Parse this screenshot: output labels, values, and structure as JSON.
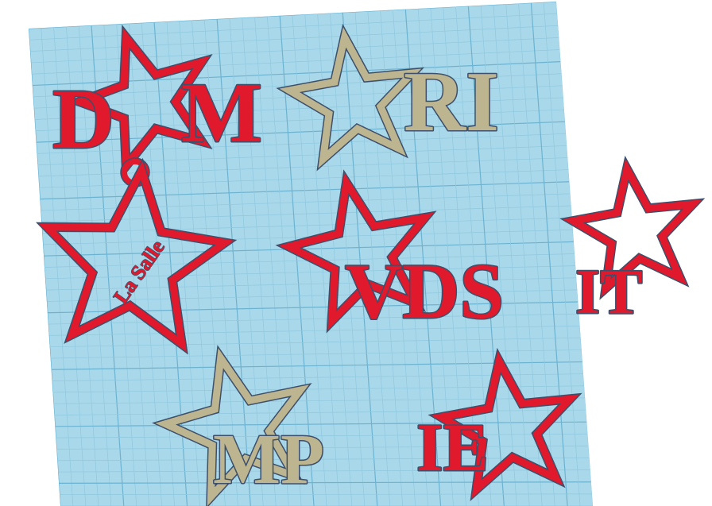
{
  "colors": {
    "background": "#ffffff",
    "workplane": "#a9d8ea",
    "grid_minor": "#8fc8df",
    "grid_major": "#6cb3d1",
    "red": "#e0192c",
    "tan": "#bdb58f",
    "outline": "#3d4f6a",
    "ring": "#e0192c"
  },
  "icons": {
    "keychain_ring": "ring-icon",
    "star": "star-icon"
  },
  "keychains": [
    {
      "id": "dam",
      "text": "DAM",
      "prefix": "D",
      "suffix": "M",
      "color": "red"
    },
    {
      "id": "ri",
      "text": "RI",
      "color": "tan"
    },
    {
      "id": "lasalle",
      "text": "La Salle",
      "color": "red"
    },
    {
      "id": "vds",
      "text": "VDS",
      "color": "red"
    },
    {
      "id": "it",
      "text": "IT",
      "color": "red"
    },
    {
      "id": "mp",
      "text": "MP",
      "color": "tan"
    },
    {
      "id": "ie",
      "text": "IE",
      "color": "red"
    }
  ]
}
